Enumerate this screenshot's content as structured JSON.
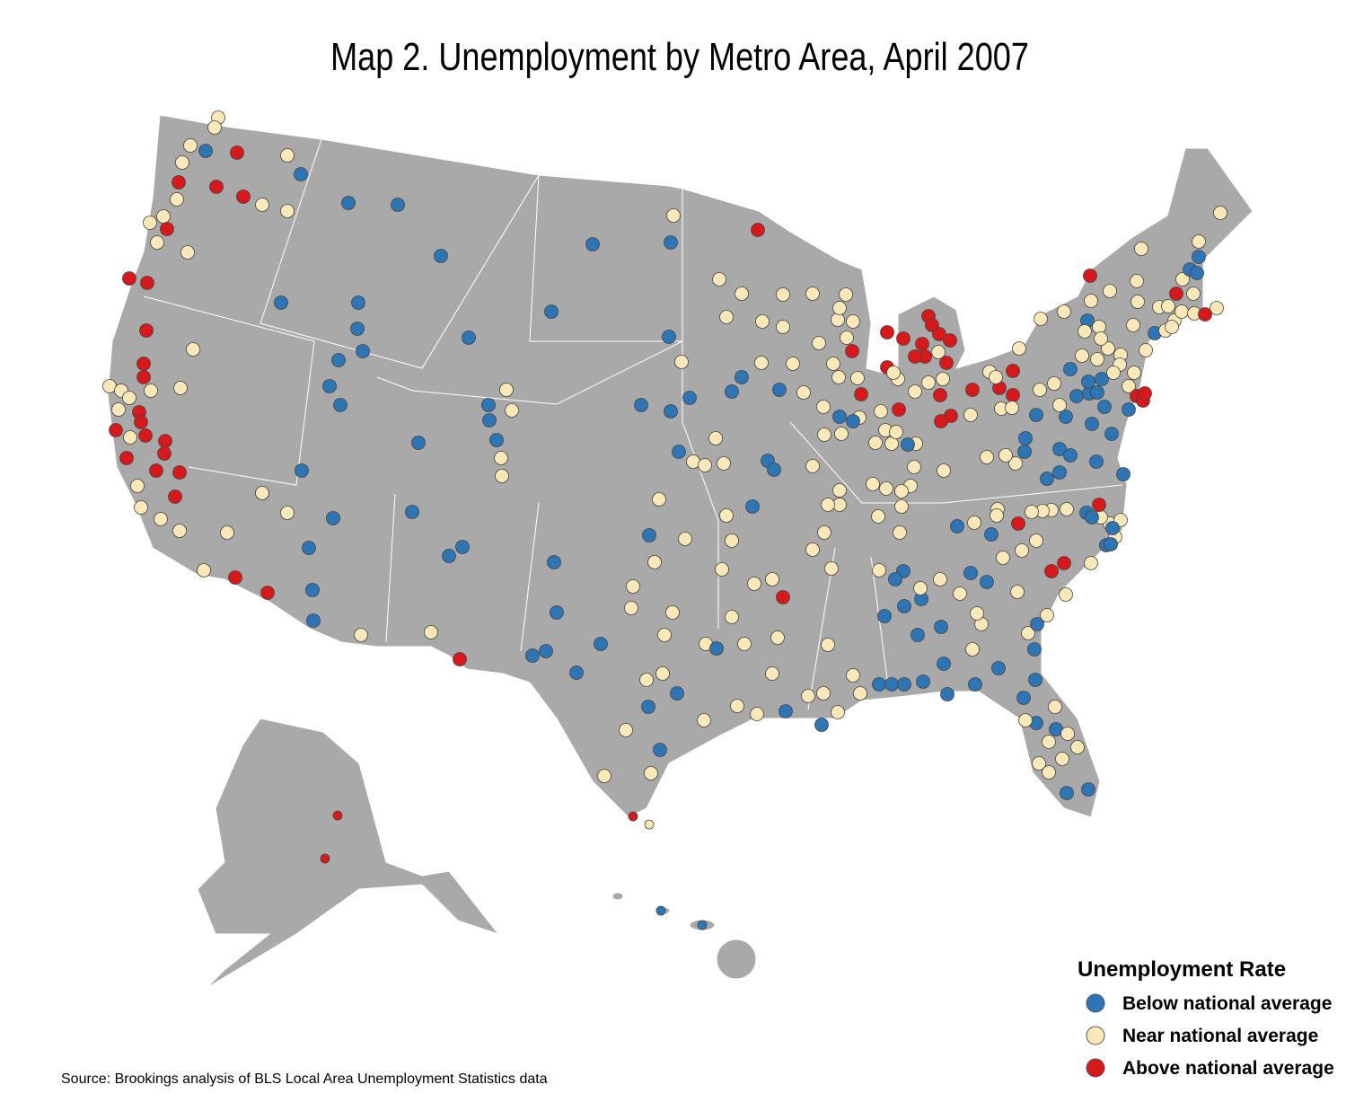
{
  "title": "Map 2. Unemployment by Metro Area, April 2007",
  "legend": {
    "title": "Unemployment Rate",
    "items": [
      {
        "label": "Below national average",
        "color": "#2e75b6"
      },
      {
        "label": "Near national average",
        "color": "#fbe8b8"
      },
      {
        "label": "Above national average",
        "color": "#d7191c"
      }
    ]
  },
  "source": "Source: Brookings analysis of BLS Local Area Unemployment Statistics data"
}
